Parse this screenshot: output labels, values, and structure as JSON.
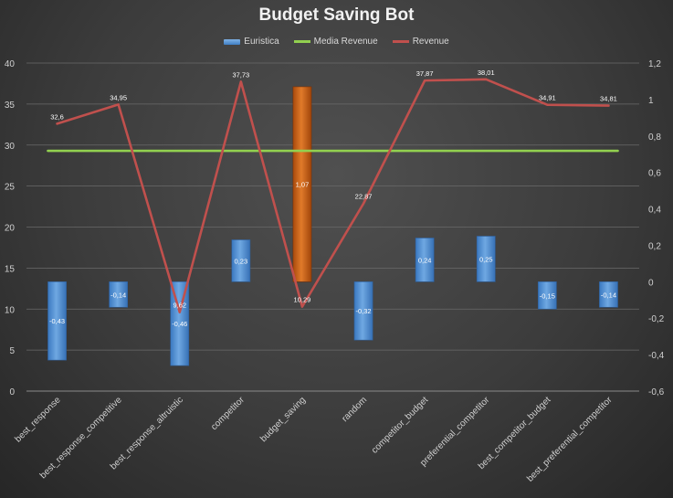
{
  "chart_data": {
    "type": "bar+line",
    "title": "Budget Saving Bot",
    "categories": [
      "best_response",
      "best_response_competitive",
      "best_response_altruistic",
      "competitor",
      "budget_saving",
      "random",
      "competitor_budget",
      "preferential_competitor",
      "best_competitor_budget",
      "best_preferential_competitor"
    ],
    "left_axis": {
      "ylim": [
        0,
        40
      ],
      "ticks": [
        "0",
        "5",
        "10",
        "15",
        "20",
        "25",
        "30",
        "35",
        "40"
      ]
    },
    "right_axis": {
      "ylim": [
        -0.6,
        1.2
      ],
      "ticks": [
        "-0,6",
        "-0,4",
        "-0,2",
        "0",
        "0,2",
        "0,4",
        "0,6",
        "0,8",
        "1",
        "1,2"
      ]
    },
    "grid": true,
    "legend_position": "top",
    "series": [
      {
        "name": "Euristica",
        "type": "bar",
        "axis": "right",
        "values": [
          -0.43,
          -0.14,
          -0.46,
          0.23,
          1.07,
          -0.32,
          0.24,
          0.25,
          -0.15,
          -0.14
        ],
        "labels": [
          "-0,43",
          "-0,14",
          "-0,46",
          "0,23",
          "1,07",
          "-0,32",
          "0,24",
          "0,25",
          "-0,15",
          "-0,14"
        ],
        "color": "#5b9bd5",
        "highlight_color": "#c55a11",
        "highlight_index": 4
      },
      {
        "name": "Media Revenue",
        "type": "line",
        "axis": "left",
        "values": [
          29.3,
          29.3,
          29.3,
          29.3,
          29.3,
          29.3,
          29.3,
          29.3,
          29.3,
          29.3
        ],
        "color": "#92d050"
      },
      {
        "name": "Revenue",
        "type": "line",
        "axis": "left",
        "values": [
          32.6,
          34.95,
          9.62,
          37.73,
          10.29,
          22.87,
          37.87,
          38.01,
          34.91,
          34.81
        ],
        "labels": [
          "32,6",
          "34,95",
          "9,62",
          "37,73",
          "10,29",
          "22,87",
          "37,87",
          "38,01",
          "34,91",
          "34,81"
        ],
        "color": "#c0504d"
      }
    ]
  }
}
